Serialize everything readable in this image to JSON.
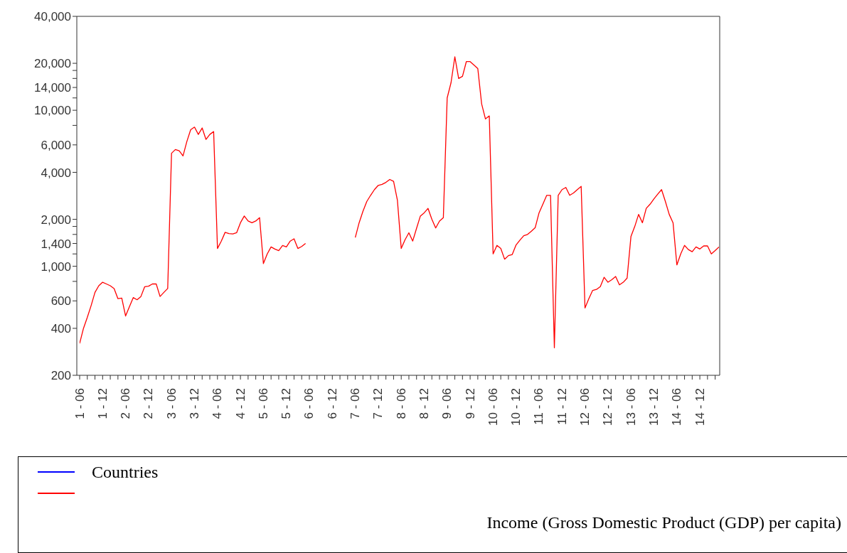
{
  "chart_data": {
    "type": "line",
    "log": true,
    "legend": "bottom",
    "categories": [
      "1 - 06",
      null,
      null,
      null,
      null,
      null,
      "1 - 12",
      null,
      null,
      null,
      null,
      null,
      "2 - 06",
      null,
      null,
      null,
      null,
      null,
      "2 - 12",
      null,
      null,
      null,
      null,
      null,
      "3 - 06",
      null,
      null,
      null,
      null,
      null,
      "3 - 12",
      null,
      null,
      null,
      null,
      null,
      "4 - 06",
      null,
      null,
      null,
      null,
      null,
      "4 - 12",
      null,
      null,
      null,
      null,
      null,
      "5 - 06",
      null,
      null,
      null,
      null,
      null,
      "5 - 12",
      null,
      null,
      null,
      null,
      null,
      "6 - 06",
      null,
      null,
      null,
      null,
      null,
      "6 - 12",
      null,
      null,
      null,
      null,
      null,
      "7 - 06",
      null,
      null,
      null,
      null,
      null,
      "7 - 12",
      null,
      null,
      null,
      null,
      null,
      "8 - 06",
      null,
      null,
      null,
      null,
      null,
      "8 - 12",
      null,
      null,
      null,
      null,
      null,
      "9 - 06",
      null,
      null,
      null,
      null,
      null,
      "9 - 12",
      null,
      null,
      null,
      null,
      null,
      "10 - 06",
      null,
      null,
      null,
      null,
      null,
      "10 - 12",
      null,
      null,
      null,
      null,
      null,
      "11 - 06",
      null,
      null,
      null,
      null,
      null,
      "11 - 12",
      null,
      null,
      null,
      null,
      null,
      "12 - 06",
      null,
      null,
      null,
      null,
      null,
      "12 - 12",
      null,
      null,
      null,
      null,
      null,
      "13 - 06",
      null,
      null,
      null,
      null,
      null,
      "13 - 12",
      null,
      null,
      null,
      null,
      null,
      "14 - 06",
      null,
      null,
      null,
      null,
      null,
      "14 - 12",
      null,
      null,
      null,
      null,
      null
    ],
    "ylim": [
      200,
      40000
    ],
    "yticks": [
      {
        "value": 200,
        "label": "200"
      },
      {
        "value": 400,
        "label": "400"
      },
      {
        "value": 600,
        "label": "600"
      },
      {
        "value": 800,
        "label": null
      },
      {
        "value": 1000,
        "label": "1,000"
      },
      {
        "value": 1200,
        "label": null
      },
      {
        "value": 1400,
        "label": "1,400"
      },
      {
        "value": 1600,
        "label": null
      },
      {
        "value": 1800,
        "label": null
      },
      {
        "value": 2000,
        "label": "2,000"
      },
      {
        "value": 4000,
        "label": "4,000"
      },
      {
        "value": 6000,
        "label": "6,000"
      },
      {
        "value": 8000,
        "label": null
      },
      {
        "value": 10000,
        "label": "10,000"
      },
      {
        "value": 12000,
        "label": null
      },
      {
        "value": 14000,
        "label": "14,000"
      },
      {
        "value": 16000,
        "label": null
      },
      {
        "value": 18000,
        "label": null
      },
      {
        "value": 20000,
        "label": "20,000"
      },
      {
        "value": 40000,
        "label": "40,000"
      }
    ],
    "series": [
      {
        "name": "Countries",
        "color": "#0000ff",
        "values": [
          null,
          null,
          null,
          null,
          null,
          null,
          null,
          null,
          null,
          null,
          null,
          null,
          null,
          null,
          null,
          null,
          null,
          null,
          null,
          null,
          null,
          null,
          null,
          null,
          null,
          null,
          null,
          null,
          null,
          null,
          null,
          null,
          null,
          null,
          null,
          null,
          null,
          null,
          null,
          null,
          null,
          null,
          null,
          null,
          null,
          null,
          null,
          null,
          null,
          null,
          null,
          null,
          null,
          null,
          null,
          null,
          null,
          null,
          null,
          null,
          null,
          null,
          null,
          null,
          null,
          null,
          null,
          null,
          null,
          null,
          null,
          null,
          null,
          null,
          null,
          null,
          null,
          null,
          null,
          null,
          null,
          null,
          null,
          null,
          null,
          null,
          null,
          null,
          null,
          null,
          null,
          null,
          null,
          null,
          null,
          null,
          null,
          null,
          null,
          null,
          null,
          null,
          null,
          null,
          null,
          null,
          null,
          null,
          null,
          null,
          null,
          null,
          null,
          null,
          null,
          null,
          null,
          null,
          null,
          null,
          null,
          null,
          null,
          null,
          null,
          null,
          null,
          null,
          null,
          null,
          null,
          null,
          null,
          null,
          null,
          null,
          null,
          null,
          null,
          null,
          null,
          null,
          null,
          null,
          null,
          null,
          null,
          null,
          null,
          null,
          null,
          null,
          null,
          null,
          null,
          null,
          null,
          null,
          null,
          null,
          null,
          null,
          null,
          null,
          null,
          null,
          null,
          null
        ]
      },
      {
        "color": "#ff0000",
        "values": [
          320,
          400,
          470,
          560,
          680,
          750,
          790,
          770,
          750,
          720,
          620,
          625,
          480,
          550,
          630,
          610,
          640,
          740,
          745,
          770,
          770,
          640,
          680,
          720,
          5300,
          5600,
          5500,
          5100,
          6300,
          7500,
          7800,
          7000,
          7700,
          6500,
          7000,
          7300,
          1300,
          1450,
          1650,
          1620,
          1610,
          1640,
          1900,
          2100,
          1950,
          1900,
          1950,
          2050,
          1040,
          1200,
          1330,
          1290,
          1260,
          1360,
          1330,
          1450,
          1500,
          1300,
          1340,
          1400,
          null,
          null,
          null,
          null,
          null,
          null,
          null,
          null,
          null,
          null,
          null,
          null,
          1530,
          1900,
          2250,
          2600,
          2850,
          3100,
          3300,
          3350,
          3450,
          3600,
          3500,
          2650,
          1300,
          1480,
          1640,
          1450,
          1750,
          2100,
          2200,
          2350,
          2000,
          1760,
          1950,
          2050,
          12000,
          15000,
          22000,
          16000,
          16500,
          20500,
          20500,
          19500,
          18500,
          11000,
          8800,
          9200,
          1200,
          1360,
          1300,
          1110,
          1170,
          1190,
          1370,
          1470,
          1570,
          1600,
          1680,
          1770,
          2200,
          2500,
          2850,
          2850,
          300,
          2850,
          3100,
          3200,
          2850,
          2950,
          3100,
          3250,
          540,
          620,
          700,
          710,
          740,
          850,
          790,
          820,
          860,
          760,
          790,
          840,
          1550,
          1800,
          2150,
          1900,
          2350,
          2500,
          2700,
          2900,
          3100,
          2600,
          2150,
          1900,
          1020,
          1200,
          1360,
          1280,
          1240,
          1330,
          1290,
          1350,
          1350,
          1200,
          1260,
          1330
        ]
      }
    ],
    "annotations": [
      "Income (Gross Domestic Product (GDP) per capita)"
    ]
  }
}
